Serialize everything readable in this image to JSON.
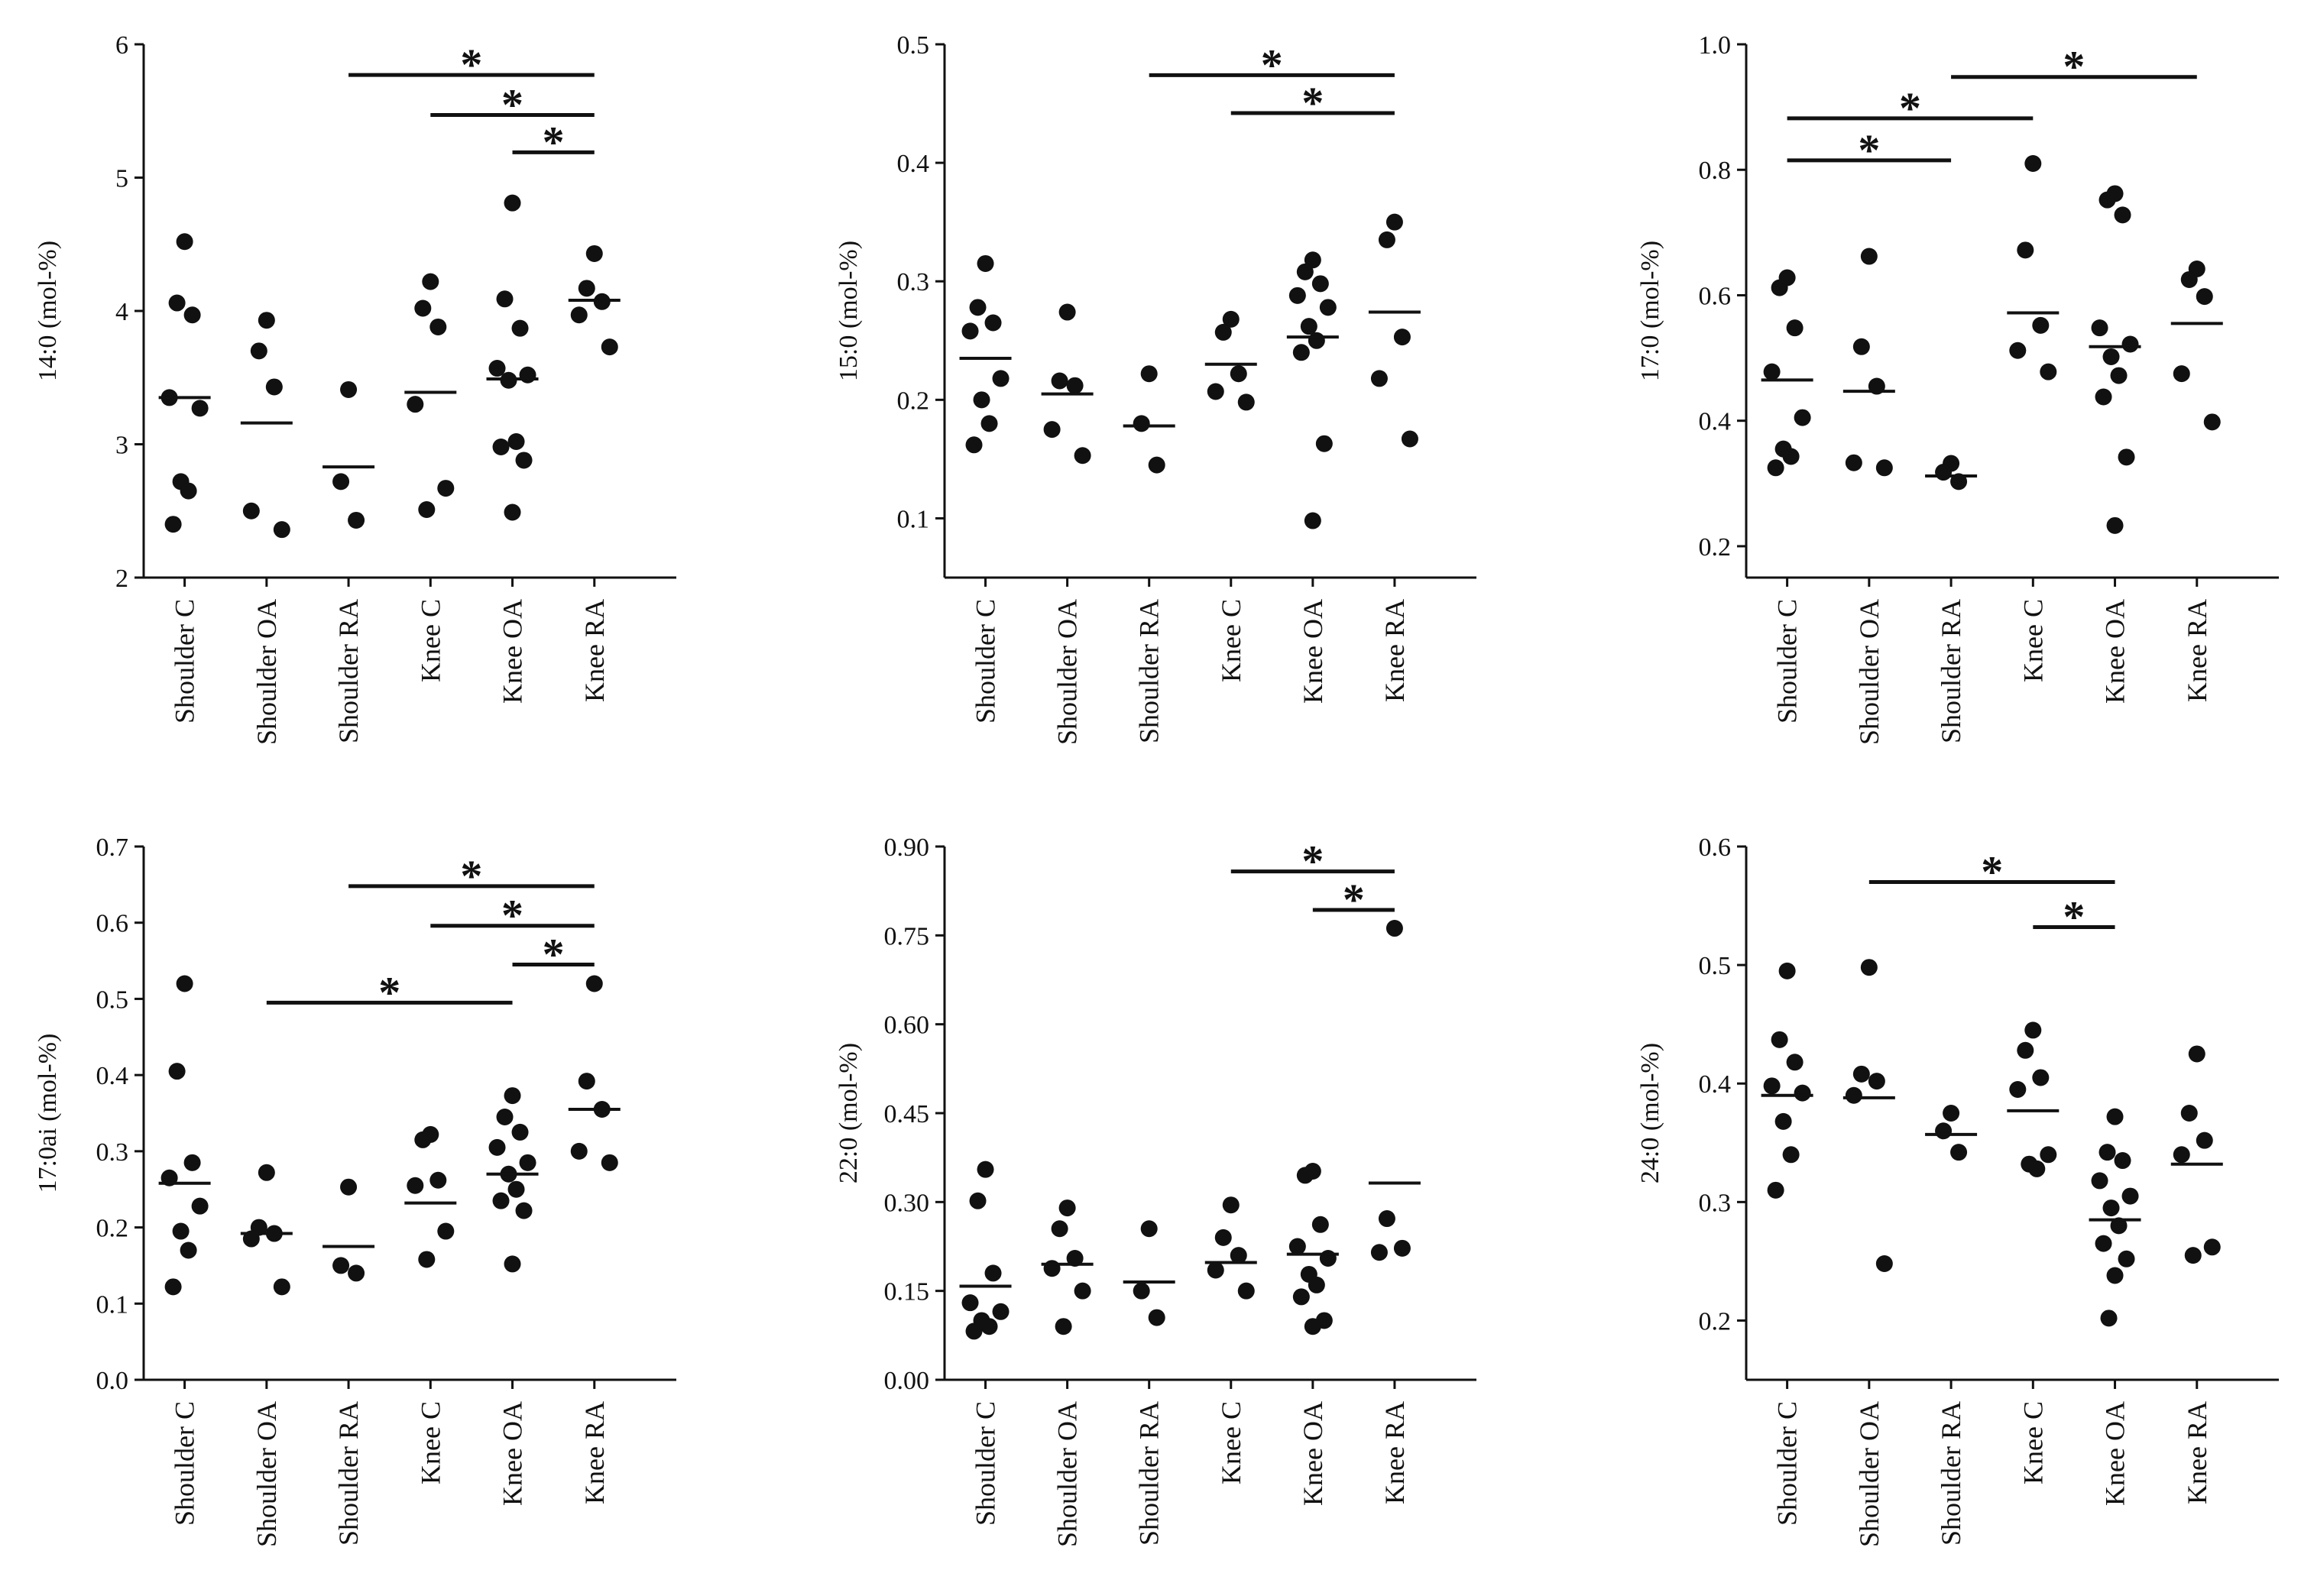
{
  "figure": {
    "colors": {
      "ink": "#111111",
      "background": "#ffffff"
    }
  },
  "chart_data": [
    {
      "type": "scatter",
      "title": "",
      "ylabel": "14:0 (mol-%)",
      "ylim": [
        2,
        6
      ],
      "yticks": [
        "2",
        "3",
        "4",
        "5",
        "6"
      ],
      "categories": [
        "Shoulder C",
        "Shoulder OA",
        "Shoulder RA",
        "Knee C",
        "Knee OA",
        "Knee RA"
      ],
      "points": [
        [
          4.52,
          4.06,
          3.97,
          3.35,
          3.27,
          2.72,
          2.65,
          2.4
        ],
        [
          3.93,
          3.7,
          3.43,
          2.5,
          2.36
        ],
        [
          3.41,
          2.72,
          2.43
        ],
        [
          4.22,
          4.02,
          3.88,
          3.3,
          2.67,
          2.51
        ],
        [
          4.81,
          4.09,
          3.87,
          3.57,
          3.52,
          3.48,
          3.02,
          2.98,
          2.88,
          2.49
        ],
        [
          4.43,
          4.17,
          4.07,
          3.97,
          3.73
        ]
      ],
      "medians": [
        3.35,
        3.16,
        2.83,
        3.39,
        3.49,
        4.08
      ],
      "significance": [
        {
          "from": "Shoulder RA",
          "to": "Knee RA",
          "y": 5.77,
          "label": "*"
        },
        {
          "from": "Knee C",
          "to": "Knee RA",
          "y": 5.47,
          "label": "*"
        },
        {
          "from": "Knee OA",
          "to": "Knee RA",
          "y": 5.19,
          "label": "*"
        }
      ]
    },
    {
      "type": "scatter",
      "title": "",
      "ylabel": "15:0 (mol-%)",
      "ylim": [
        0.05,
        0.5
      ],
      "yticks": [
        "0.1",
        "0.2",
        "0.3",
        "0.4",
        "0.5"
      ],
      "categories": [
        "Shoulder C",
        "Shoulder OA",
        "Shoulder RA",
        "Knee C",
        "Knee OA",
        "Knee RA"
      ],
      "points": [
        [
          0.315,
          0.278,
          0.265,
          0.258,
          0.218,
          0.2,
          0.18,
          0.162
        ],
        [
          0.274,
          0.216,
          0.212,
          0.175,
          0.153
        ],
        [
          0.222,
          0.18,
          0.145
        ],
        [
          0.268,
          0.257,
          0.222,
          0.207,
          0.198
        ],
        [
          0.318,
          0.308,
          0.298,
          0.288,
          0.278,
          0.262,
          0.25,
          0.24,
          0.163,
          0.098
        ],
        [
          0.35,
          0.335,
          0.253,
          0.218,
          0.167
        ]
      ],
      "medians": [
        0.235,
        0.205,
        0.178,
        0.23,
        0.253,
        0.274
      ],
      "significance": [
        {
          "from": "Shoulder RA",
          "to": "Knee RA",
          "y": 0.474,
          "label": "*"
        },
        {
          "from": "Knee C",
          "to": "Knee RA",
          "y": 0.442,
          "label": "*"
        }
      ]
    },
    {
      "type": "scatter",
      "title": "",
      "ylabel": "17:0 (mol-%)",
      "ylim": [
        0.15,
        1.0
      ],
      "yticks": [
        "0.2",
        "0.4",
        "0.6",
        "0.8",
        "1.0"
      ],
      "categories": [
        "Shoulder C",
        "Shoulder OA",
        "Shoulder RA",
        "Knee C",
        "Knee OA",
        "Knee RA"
      ],
      "points": [
        [
          0.628,
          0.612,
          0.548,
          0.478,
          0.405,
          0.355,
          0.343,
          0.325
        ],
        [
          0.662,
          0.518,
          0.455,
          0.333,
          0.325
        ],
        [
          0.332,
          0.318,
          0.303
        ],
        [
          0.81,
          0.672,
          0.552,
          0.512,
          0.478
        ],
        [
          0.762,
          0.752,
          0.728,
          0.548,
          0.522,
          0.502,
          0.472,
          0.438,
          0.342,
          0.233
        ],
        [
          0.642,
          0.625,
          0.598,
          0.475,
          0.398
        ]
      ],
      "medians": [
        0.465,
        0.447,
        0.312,
        0.572,
        0.518,
        0.555
      ],
      "significance": [
        {
          "from": "Shoulder RA",
          "to": "Knee RA",
          "y": 0.948,
          "label": "*"
        },
        {
          "from": "Shoulder C",
          "to": "Knee C",
          "y": 0.882,
          "label": "*"
        },
        {
          "from": "Shoulder C",
          "to": "Shoulder RA",
          "y": 0.815,
          "label": "*"
        }
      ]
    },
    {
      "type": "scatter",
      "title": "",
      "ylabel": "17:0ai (mol-%)",
      "ylim": [
        0.0,
        0.7
      ],
      "yticks": [
        "0.0",
        "0.1",
        "0.2",
        "0.3",
        "0.4",
        "0.5",
        "0.6",
        "0.7"
      ],
      "categories": [
        "Shoulder C",
        "Shoulder OA",
        "Shoulder RA",
        "Knee C",
        "Knee OA",
        "Knee RA"
      ],
      "points": [
        [
          0.52,
          0.405,
          0.285,
          0.265,
          0.228,
          0.195,
          0.17,
          0.122
        ],
        [
          0.272,
          0.2,
          0.192,
          0.185,
          0.122
        ],
        [
          0.253,
          0.15,
          0.14
        ],
        [
          0.322,
          0.315,
          0.262,
          0.255,
          0.195,
          0.158
        ],
        [
          0.373,
          0.345,
          0.325,
          0.305,
          0.285,
          0.27,
          0.25,
          0.235,
          0.222,
          0.152
        ],
        [
          0.52,
          0.392,
          0.355,
          0.3,
          0.285
        ]
      ],
      "medians": [
        0.258,
        0.192,
        0.175,
        0.232,
        0.27,
        0.355
      ],
      "significance": [
        {
          "from": "Shoulder RA",
          "to": "Knee RA",
          "y": 0.648,
          "label": "*"
        },
        {
          "from": "Knee C",
          "to": "Knee RA",
          "y": 0.596,
          "label": "*"
        },
        {
          "from": "Knee OA",
          "to": "Knee RA",
          "y": 0.545,
          "label": "*"
        },
        {
          "from": "Shoulder OA",
          "to": "Knee OA",
          "y": 0.495,
          "label": "*"
        }
      ]
    },
    {
      "type": "scatter",
      "title": "",
      "ylabel": "22:0 (mol-%)",
      "ylim": [
        0.0,
        0.9
      ],
      "yticks": [
        "0.00",
        "0.15",
        "0.30",
        "0.45",
        "0.60",
        "0.75",
        "0.90"
      ],
      "categories": [
        "Shoulder C",
        "Shoulder OA",
        "Shoulder RA",
        "Knee C",
        "Knee OA",
        "Knee RA"
      ],
      "points": [
        [
          0.355,
          0.302,
          0.18,
          0.13,
          0.115,
          0.1,
          0.09,
          0.082
        ],
        [
          0.29,
          0.255,
          0.205,
          0.188,
          0.15,
          0.09
        ],
        [
          0.255,
          0.15,
          0.105
        ],
        [
          0.295,
          0.24,
          0.21,
          0.185,
          0.15
        ],
        [
          0.352,
          0.345,
          0.262,
          0.225,
          0.205,
          0.178,
          0.16,
          0.14,
          0.1,
          0.09
        ],
        [
          0.762,
          0.272,
          0.222,
          0.215
        ]
      ],
      "medians": [
        0.158,
        0.195,
        0.165,
        0.198,
        0.212,
        0.332
      ],
      "significance": [
        {
          "from": "Knee C",
          "to": "Knee RA",
          "y": 0.858,
          "label": "*"
        },
        {
          "from": "Knee OA",
          "to": "Knee RA",
          "y": 0.793,
          "label": "*"
        }
      ]
    },
    {
      "type": "scatter",
      "title": "",
      "ylabel": "24:0 (mol-%)",
      "ylim": [
        0.15,
        0.6
      ],
      "yticks": [
        "0.2",
        "0.3",
        "0.4",
        "0.5",
        "0.6"
      ],
      "categories": [
        "Shoulder C",
        "Shoulder OA",
        "Shoulder RA",
        "Knee C",
        "Knee OA",
        "Knee RA"
      ],
      "points": [
        [
          0.495,
          0.437,
          0.418,
          0.398,
          0.392,
          0.368,
          0.34,
          0.31
        ],
        [
          0.498,
          0.408,
          0.402,
          0.39,
          0.248
        ],
        [
          0.375,
          0.36,
          0.342
        ],
        [
          0.445,
          0.428,
          0.405,
          0.395,
          0.34,
          0.332,
          0.328
        ],
        [
          0.372,
          0.342,
          0.335,
          0.318,
          0.305,
          0.295,
          0.28,
          0.265,
          0.252,
          0.238,
          0.202
        ],
        [
          0.425,
          0.375,
          0.352,
          0.34,
          0.262,
          0.255
        ]
      ],
      "medians": [
        0.39,
        0.388,
        0.357,
        0.377,
        0.285,
        0.332
      ],
      "significance": [
        {
          "from": "Shoulder OA",
          "to": "Knee OA",
          "y": 0.57,
          "label": "*"
        },
        {
          "from": "Knee C",
          "to": "Knee OA",
          "y": 0.532,
          "label": "*"
        }
      ]
    }
  ]
}
